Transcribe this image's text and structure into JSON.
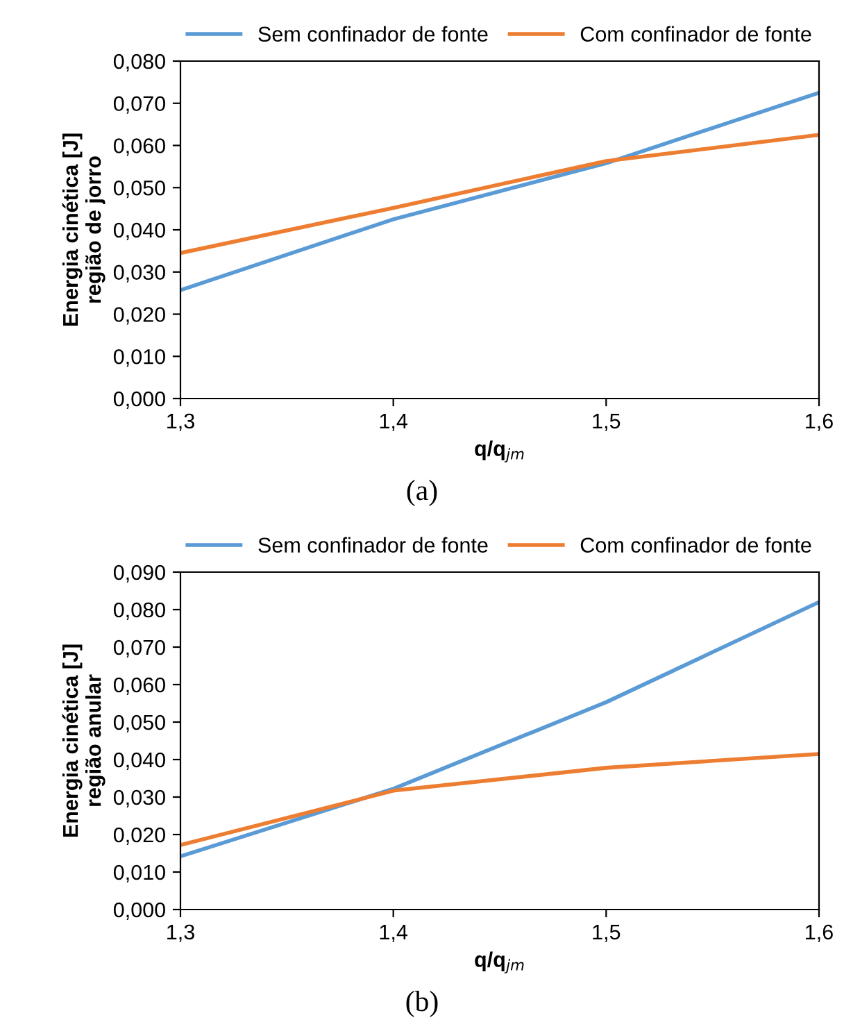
{
  "chart_data": [
    {
      "type": "line",
      "xlabel": "q/q$_{jm}$",
      "ylabel": "Energia cinética [J]\nregião de jorro",
      "annotations": [
        "(a)"
      ],
      "x": [
        1.3,
        1.4,
        1.5,
        1.6
      ],
      "series": [
        {
          "name": "Sem confinador de fonte",
          "color": "#5b9bd5",
          "values": [
            0.0257,
            0.0425,
            0.0558,
            0.0725
          ]
        },
        {
          "name": "Com confinador de fonte",
          "color": "#ed7d31",
          "values": [
            0.0345,
            0.0452,
            0.0563,
            0.0625
          ]
        }
      ],
      "xlim": [
        1.3,
        1.6
      ],
      "xticks": [
        {
          "value": 1.3,
          "label": "1,3"
        },
        {
          "value": 1.4,
          "label": "1,4"
        },
        {
          "value": 1.5,
          "label": "1,5"
        },
        {
          "value": 1.6,
          "label": "1,6"
        }
      ],
      "ylim": [
        0,
        0.08
      ],
      "yticks": [
        {
          "value": 0,
          "label": "0,000"
        },
        {
          "value": 0.01,
          "label": "0,010"
        },
        {
          "value": 0.02,
          "label": "0,020"
        },
        {
          "value": 0.03,
          "label": "0,030"
        },
        {
          "value": 0.04,
          "label": "0,040"
        },
        {
          "value": 0.05,
          "label": "0,050"
        },
        {
          "value": 0.06,
          "label": "0,060"
        },
        {
          "value": 0.07,
          "label": "0,070"
        },
        {
          "value": 0.08,
          "label": "0,080"
        }
      ],
      "grid": false,
      "legend": "top",
      "marker": "none",
      "line_style": "solid"
    },
    {
      "type": "line",
      "xlabel": "q/q$_{jm}$",
      "ylabel": "Energia cinética [J]\nregião anular",
      "annotations": [
        "(b)"
      ],
      "x": [
        1.3,
        1.4,
        1.5,
        1.6
      ],
      "series": [
        {
          "name": "Sem confinador de fonte",
          "color": "#5b9bd5",
          "values": [
            0.0142,
            0.0322,
            0.0553,
            0.082
          ]
        },
        {
          "name": "Com confinador de fonte",
          "color": "#ed7d31",
          "values": [
            0.0172,
            0.0317,
            0.0378,
            0.0415
          ]
        }
      ],
      "xlim": [
        1.3,
        1.6
      ],
      "xticks": [
        {
          "value": 1.3,
          "label": "1,3"
        },
        {
          "value": 1.4,
          "label": "1,4"
        },
        {
          "value": 1.5,
          "label": "1,5"
        },
        {
          "value": 1.6,
          "label": "1,6"
        }
      ],
      "ylim": [
        0,
        0.09
      ],
      "yticks": [
        {
          "value": 0,
          "label": "0,000"
        },
        {
          "value": 0.01,
          "label": "0,010"
        },
        {
          "value": 0.02,
          "label": "0,020"
        },
        {
          "value": 0.03,
          "label": "0,030"
        },
        {
          "value": 0.04,
          "label": "0,040"
        },
        {
          "value": 0.05,
          "label": "0,050"
        },
        {
          "value": 0.06,
          "label": "0,060"
        },
        {
          "value": 0.07,
          "label": "0,070"
        },
        {
          "value": 0.08,
          "label": "0,080"
        },
        {
          "value": 0.09,
          "label": "0,090"
        }
      ],
      "grid": false,
      "legend": "top",
      "marker": "none",
      "line_style": "solid"
    }
  ]
}
